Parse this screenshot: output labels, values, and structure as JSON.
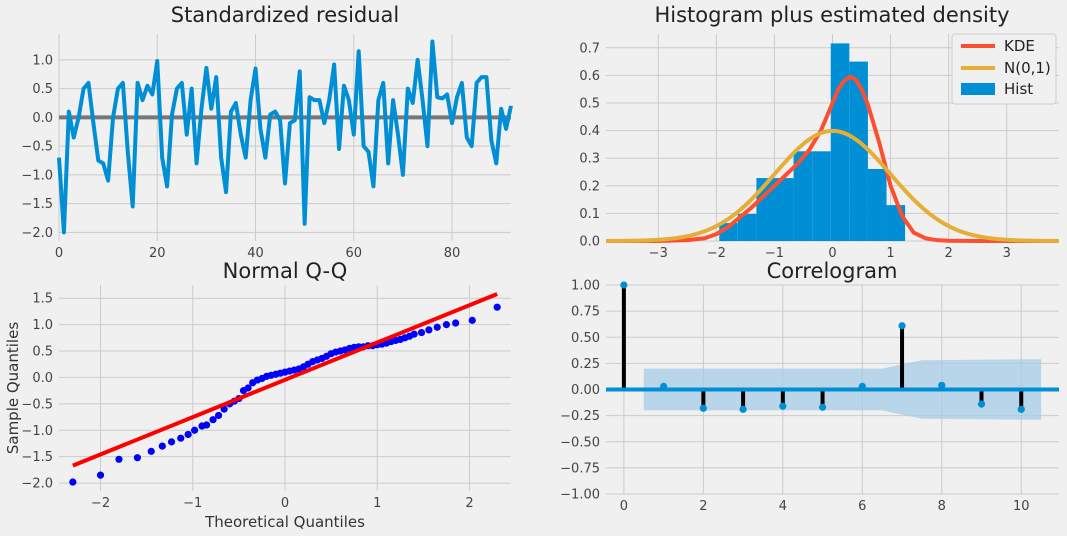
{
  "chart_data": [
    {
      "type": "line",
      "title": "Standardized residual",
      "xlim": [
        0,
        92
      ],
      "ylim": [
        -2.15,
        1.45
      ],
      "xticks": [
        0,
        20,
        40,
        60,
        80
      ],
      "yticks": [
        -2.0,
        -1.5,
        -1.0,
        -0.5,
        0.0,
        0.5,
        1.0
      ],
      "grid": true,
      "series": [
        {
          "color": "#008fd5",
          "x": [
            0,
            1,
            2,
            3,
            4,
            5,
            6,
            7,
            8,
            9,
            10,
            11,
            12,
            13,
            14,
            15,
            16,
            17,
            18,
            19,
            20,
            21,
            22,
            23,
            24,
            25,
            26,
            27,
            28,
            29,
            30,
            31,
            32,
            33,
            34,
            35,
            36,
            37,
            38,
            39,
            40,
            41,
            42,
            43,
            44,
            45,
            46,
            47,
            48,
            49,
            50,
            51,
            52,
            53,
            54,
            55,
            56,
            57,
            58,
            59,
            60,
            61,
            62,
            63,
            64,
            65,
            66,
            67,
            68,
            69,
            70,
            71,
            72,
            73,
            74,
            75,
            76,
            77,
            78,
            79,
            80,
            81,
            82,
            83,
            84,
            85,
            86,
            87,
            88,
            89,
            90,
            91,
            92
          ],
          "y": [
            -0.7,
            -2.0,
            0.1,
            -0.35,
            0.0,
            0.5,
            0.6,
            -0.1,
            -0.75,
            -0.8,
            -1.1,
            0.0,
            0.5,
            0.6,
            -0.6,
            -1.55,
            0.6,
            0.3,
            0.55,
            0.4,
            0.98,
            -0.7,
            -1.2,
            0.05,
            0.5,
            0.6,
            -0.3,
            0.5,
            -0.8,
            0.15,
            0.86,
            0.15,
            0.7,
            -0.7,
            -1.3,
            0.1,
            0.25,
            -0.3,
            -0.7,
            0.3,
            0.85,
            -0.2,
            -0.7,
            0.05,
            0.1,
            -0.05,
            -1.15,
            -0.1,
            -0.05,
            0.8,
            -1.85,
            0.35,
            0.3,
            0.3,
            -0.1,
            0.3,
            0.92,
            -0.55,
            0.55,
            0.3,
            -0.3,
            1.15,
            -0.5,
            -0.6,
            -1.2,
            0.3,
            0.6,
            -0.8,
            0.3,
            -0.3,
            -1.0,
            0.5,
            0.25,
            1.0,
            0.3,
            -0.5,
            1.32,
            0.35,
            0.33,
            0.4,
            -0.1,
            0.35,
            0.6,
            -0.35,
            -0.5,
            0.6,
            0.7,
            0.7,
            -0.4,
            -0.8,
            0.15,
            -0.2,
            0.2
          ]
        }
      ]
    },
    {
      "type": "bar",
      "title": "Histogram plus estimated density",
      "xlim": [
        -3.9,
        3.9
      ],
      "ylim": [
        0,
        0.75
      ],
      "xticks": [
        -3,
        -2,
        -1,
        0,
        1,
        2,
        3
      ],
      "yticks": [
        0.0,
        0.1,
        0.2,
        0.3,
        0.4,
        0.5,
        0.6,
        0.7
      ],
      "grid": true,
      "legend": {
        "placement": "top-right",
        "entries": [
          "KDE",
          "N(0,1)",
          "Hist"
        ]
      },
      "hist": {
        "name": "Hist",
        "color": "#008fd5",
        "bins": [
          -1.95,
          -1.63,
          -1.31,
          -0.99,
          -0.67,
          -0.35,
          -0.03,
          0.29,
          0.61,
          0.93,
          1.25
        ],
        "values": [
          0.065,
          0.098,
          0.228,
          0.228,
          0.325,
          0.325,
          0.716,
          0.65,
          0.261,
          0.13
        ]
      },
      "kde": {
        "name": "KDE",
        "color": "#fc4f30",
        "x": [
          -3.9,
          -3.0,
          -2.5,
          -2.2,
          -2.0,
          -1.8,
          -1.6,
          -1.4,
          -1.2,
          -1.0,
          -0.8,
          -0.6,
          -0.4,
          -0.2,
          0.0,
          0.1,
          0.2,
          0.3,
          0.4,
          0.5,
          0.6,
          0.8,
          1.0,
          1.2,
          1.4,
          1.6,
          1.8,
          2.0,
          2.5,
          3.9
        ],
        "y": [
          0.0,
          0.0,
          0.003,
          0.01,
          0.025,
          0.05,
          0.085,
          0.12,
          0.16,
          0.2,
          0.24,
          0.28,
          0.33,
          0.4,
          0.5,
          0.55,
          0.58,
          0.595,
          0.585,
          0.55,
          0.5,
          0.36,
          0.2,
          0.09,
          0.03,
          0.01,
          0.003,
          0.001,
          0.0,
          0.0
        ]
      },
      "normal": {
        "name": "N(0,1)",
        "color": "#e5ae38",
        "mean": 0,
        "std": 1
      }
    },
    {
      "type": "scatter",
      "title": "Normal Q-Q",
      "xlabel": "Theoretical Quantiles",
      "ylabel": "Sample Quantiles",
      "xlim": [
        -2.45,
        2.45
      ],
      "ylim": [
        -2.15,
        1.75
      ],
      "xticks": [
        -2,
        -1,
        0,
        1,
        2
      ],
      "yticks": [
        -2.0,
        -1.5,
        -1.0,
        -0.5,
        0.0,
        0.5,
        1.0,
        1.5
      ],
      "grid": true,
      "points": {
        "color": "#0000ff",
        "x": [
          -2.3,
          -2.0,
          -1.8,
          -1.6,
          -1.45,
          -1.33,
          -1.23,
          -1.13,
          -1.05,
          -0.98,
          -0.9,
          -0.85,
          -0.78,
          -0.72,
          -0.66,
          -0.6,
          -0.55,
          -0.5,
          -0.45,
          -0.4,
          -0.35,
          -0.3,
          -0.25,
          -0.2,
          -0.15,
          -0.1,
          -0.05,
          0.0,
          0.05,
          0.1,
          0.15,
          0.2,
          0.25,
          0.3,
          0.35,
          0.4,
          0.45,
          0.5,
          0.55,
          0.6,
          0.65,
          0.7,
          0.75,
          0.8,
          0.85,
          0.9,
          0.95,
          1.0,
          1.05,
          1.1,
          1.15,
          1.2,
          1.25,
          1.3,
          1.35,
          1.4,
          1.48,
          1.56,
          1.65,
          1.75,
          1.85,
          2.03,
          2.3
        ],
        "y": [
          -1.98,
          -1.85,
          -1.55,
          -1.52,
          -1.4,
          -1.3,
          -1.22,
          -1.15,
          -1.08,
          -1.0,
          -0.92,
          -0.9,
          -0.8,
          -0.72,
          -0.6,
          -0.5,
          -0.45,
          -0.4,
          -0.25,
          -0.2,
          -0.1,
          -0.05,
          -0.02,
          0.02,
          0.04,
          0.06,
          0.08,
          0.1,
          0.12,
          0.14,
          0.16,
          0.2,
          0.25,
          0.3,
          0.33,
          0.36,
          0.4,
          0.45,
          0.48,
          0.5,
          0.52,
          0.55,
          0.57,
          0.58,
          0.58,
          0.6,
          0.6,
          0.62,
          0.63,
          0.65,
          0.68,
          0.7,
          0.72,
          0.75,
          0.78,
          0.82,
          0.85,
          0.9,
          0.95,
          1.0,
          1.03,
          1.08,
          1.33
        ]
      },
      "line": {
        "color": "#ff0000",
        "x": [
          -2.3,
          2.3
        ],
        "y": [
          -1.67,
          1.58
        ]
      }
    },
    {
      "type": "bar",
      "title": "Correlogram",
      "xlim": [
        -0.45,
        10.95
      ],
      "ylim": [
        -1.0,
        1.0
      ],
      "xticks": [
        0,
        2,
        4,
        6,
        8,
        10
      ],
      "yticks": [
        -1.0,
        -0.75,
        -0.5,
        -0.25,
        0.0,
        0.25,
        0.5,
        0.75,
        1.0
      ],
      "yticklabels": [
        "−1.00",
        "−0.75",
        "−0.50",
        "−0.25",
        "0.00",
        "0.25",
        "0.50",
        "0.75",
        "1.00"
      ],
      "grid": true,
      "lags": [
        0,
        1,
        2,
        3,
        4,
        5,
        6,
        7,
        8,
        9,
        10
      ],
      "values": [
        1.0,
        0.03,
        -0.18,
        -0.19,
        -0.16,
        -0.17,
        0.03,
        0.61,
        0.04,
        -0.14,
        -0.19
      ],
      "confidence_band": {
        "color": "#a6cce8",
        "x": [
          0.5,
          6.5,
          7.5,
          10.5
        ],
        "upper": [
          0.2,
          0.2,
          0.28,
          0.29
        ],
        "lower": [
          -0.2,
          -0.2,
          -0.28,
          -0.29
        ]
      },
      "stem_color": "#000000",
      "marker_color": "#008fd5",
      "zero_line_color": "#008fd5"
    }
  ]
}
